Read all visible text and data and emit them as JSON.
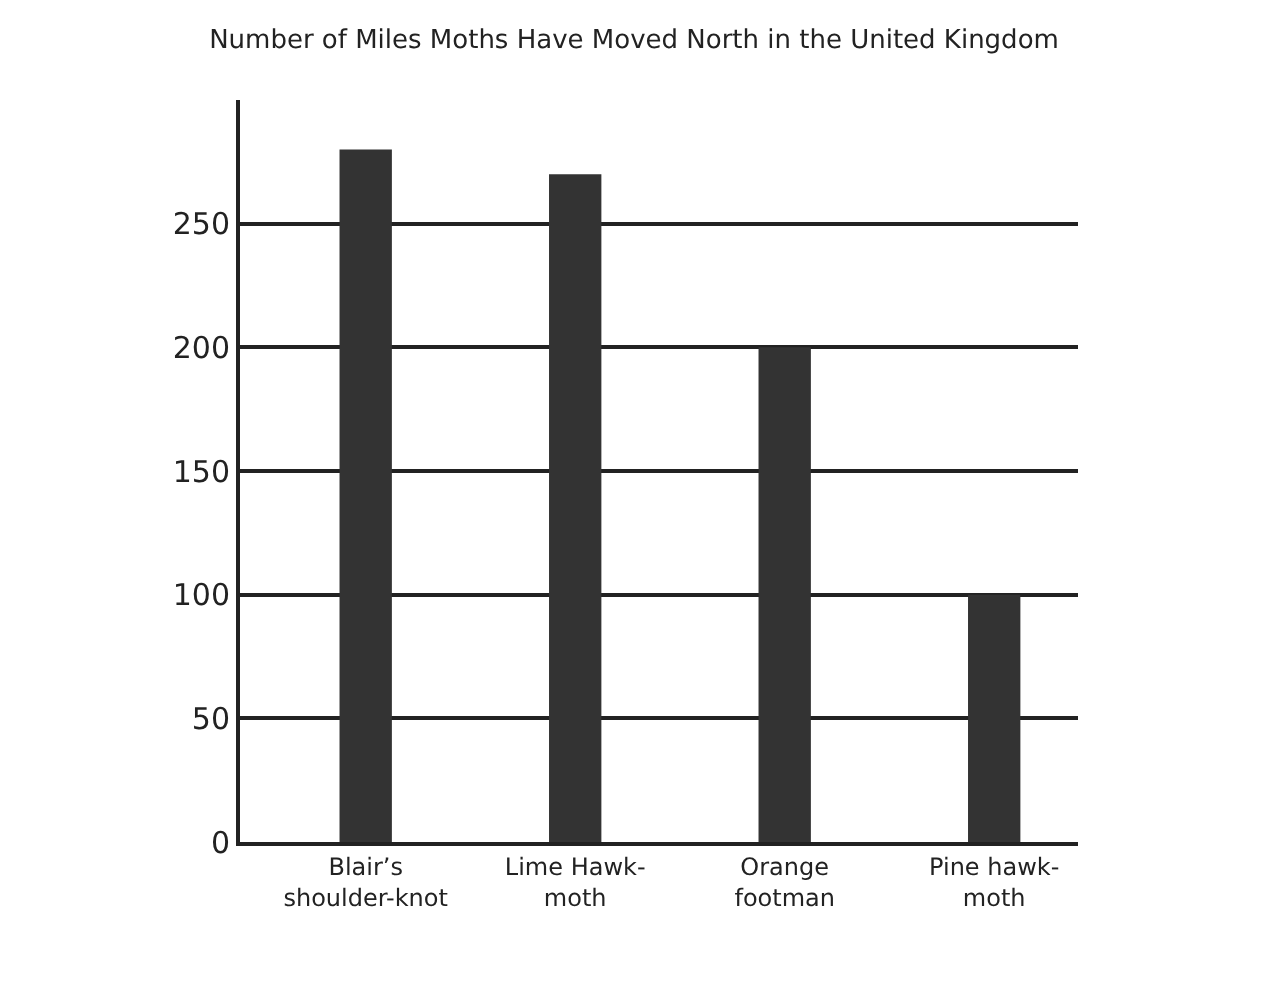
{
  "chart_data": {
    "type": "bar",
    "title": "Number of Miles Moths Have Moved North in the United Kingdom",
    "categories": [
      "Blair’s\nshoulder-knot",
      "Lime Hawk-\nmoth",
      "Orange\nfootman",
      "Pine hawk-\nmoth"
    ],
    "values": [
      280,
      270,
      200,
      100
    ],
    "color": "#333333",
    "ylim": [
      0,
      300
    ],
    "yticks": [
      0,
      50,
      100,
      150,
      200,
      250
    ],
    "grid": "y"
  }
}
